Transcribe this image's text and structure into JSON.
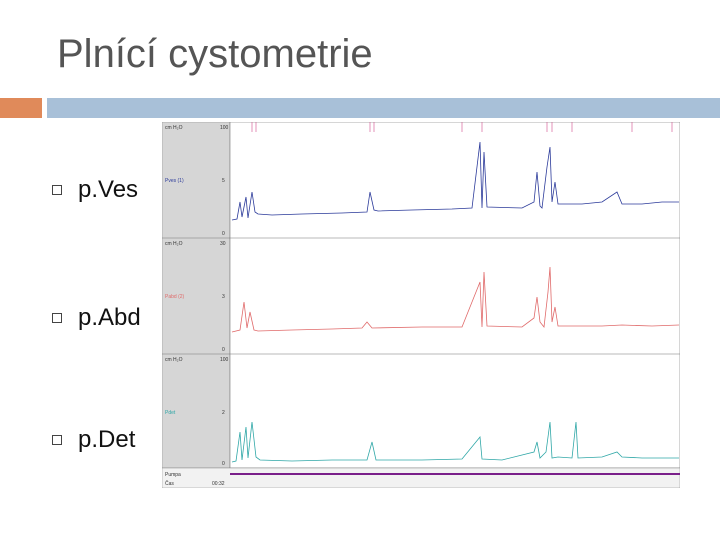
{
  "slide": {
    "title": "Plnící cystometrie",
    "bullets": [
      "p.Ves",
      "p.Abd",
      "p.Det"
    ]
  },
  "colors": {
    "accent_orange": "#e08a5a",
    "accent_blue": "#a8c0d8",
    "ves": "#2b3a9a",
    "abd": "#e06a6a",
    "det": "#2fa7a7",
    "panel": "#d6d6d6"
  },
  "chart": {
    "panels": [
      {
        "name": "Pves (1)",
        "unit": "cm H₂O",
        "top": "100",
        "mid": "5",
        "bottom": "0"
      },
      {
        "name": "Pabd (2)",
        "unit": "cm H₂O",
        "top": "30",
        "mid": "3",
        "bottom": "0"
      },
      {
        "name": "Pdet",
        "unit": "cm H₂O",
        "top": "100",
        "mid": "2",
        "bottom": "0"
      }
    ],
    "footer": {
      "pumpa": "Pumpa",
      "cas": "Čas",
      "time_val": "00:32"
    }
  }
}
